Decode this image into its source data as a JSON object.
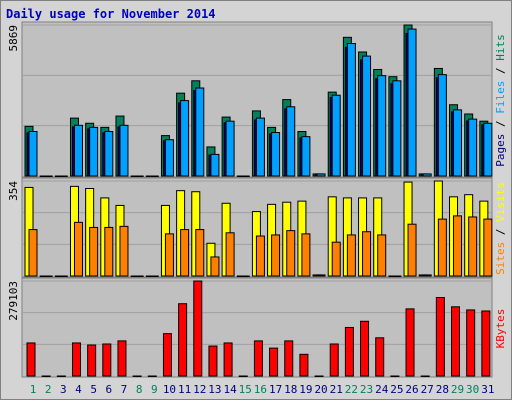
{
  "chart_data": [
    {
      "type": "bar",
      "title": "Daily usage for November 2014",
      "separator": " / ",
      "ylim": [
        0,
        5869
      ],
      "yticks": [
        5869
      ],
      "series": [
        {
          "name": "Hits",
          "color": "#00805c",
          "values": [
            1930,
            0,
            0,
            2250,
            2050,
            1890,
            2330,
            0,
            0,
            1570,
            3220,
            3700,
            1130,
            2290,
            0,
            2530,
            1890,
            2970,
            1730,
            80,
            3260,
            5390,
            4820,
            4140,
            3860,
            5869,
            80,
            4180,
            2770,
            2410,
            2130
          ]
        },
        {
          "name": "Files",
          "color": "#00a0ff",
          "values": [
            1730,
            0,
            0,
            1970,
            1890,
            1730,
            1970,
            0,
            0,
            1410,
            2930,
            3420,
            840,
            2130,
            0,
            2250,
            1690,
            2690,
            1530,
            80,
            3140,
            5150,
            4660,
            3900,
            3700,
            5710,
            80,
            3940,
            2570,
            2210,
            2050
          ]
        },
        {
          "name": "Pages",
          "color": "#000080",
          "values": [
            1680,
            0,
            0,
            1910,
            1830,
            1680,
            1910,
            0,
            0,
            1370,
            2840,
            3320,
            810,
            2070,
            0,
            2180,
            1640,
            2610,
            1480,
            80,
            3050,
            5000,
            4520,
            3780,
            3590,
            5540,
            80,
            3820,
            2490,
            2140,
            1990
          ]
        }
      ]
    },
    {
      "type": "bar",
      "separator": " / ",
      "ylim": [
        0,
        354
      ],
      "yticks": [
        354
      ],
      "series": [
        {
          "name": "Visits",
          "color": "#ffff00",
          "values": [
            330,
            0,
            0,
            334,
            326,
            291,
            263,
            0,
            0,
            263,
            318,
            314,
            122,
            271,
            0,
            240,
            267,
            275,
            279,
            4,
            295,
            291,
            291,
            291,
            0,
            350,
            4,
            354,
            295,
            303,
            279
          ]
        },
        {
          "name": "Sites",
          "color": "#ff8000",
          "values": [
            173,
            0,
            0,
            200,
            181,
            181,
            185,
            0,
            0,
            157,
            173,
            173,
            71,
            161,
            0,
            149,
            153,
            169,
            157,
            4,
            126,
            153,
            165,
            153,
            0,
            193,
            4,
            212,
            224,
            220,
            212
          ]
        }
      ]
    },
    {
      "type": "bar",
      "ylim": [
        0,
        279103
      ],
      "yticks": [
        279103
      ],
      "categories": [
        "1",
        "2",
        "3",
        "4",
        "5",
        "6",
        "7",
        "8",
        "9",
        "10",
        "11",
        "12",
        "13",
        "14",
        "15",
        "16",
        "17",
        "18",
        "19",
        "20",
        "21",
        "22",
        "23",
        "24",
        "25",
        "26",
        "27",
        "28",
        "29",
        "30",
        "31"
      ],
      "label_color": "#000080",
      "weekend_label_color": "#00805c",
      "weekend_indices": [
        0,
        1,
        7,
        8,
        14,
        15,
        21,
        22,
        28,
        29
      ],
      "series": [
        {
          "name": "KBytes",
          "color": "#ff0000",
          "values": [
            97090,
            0,
            0,
            97090,
            91020,
            94050,
            103150,
            0,
            0,
            124390,
            212380,
            279103,
            87990,
            97090,
            0,
            103150,
            81920,
            103150,
            63710,
            0,
            94050,
            142600,
            160800,
            112260,
            0,
            197210,
            0,
            230580,
            203280,
            194180,
            191000
          ]
        }
      ]
    }
  ]
}
